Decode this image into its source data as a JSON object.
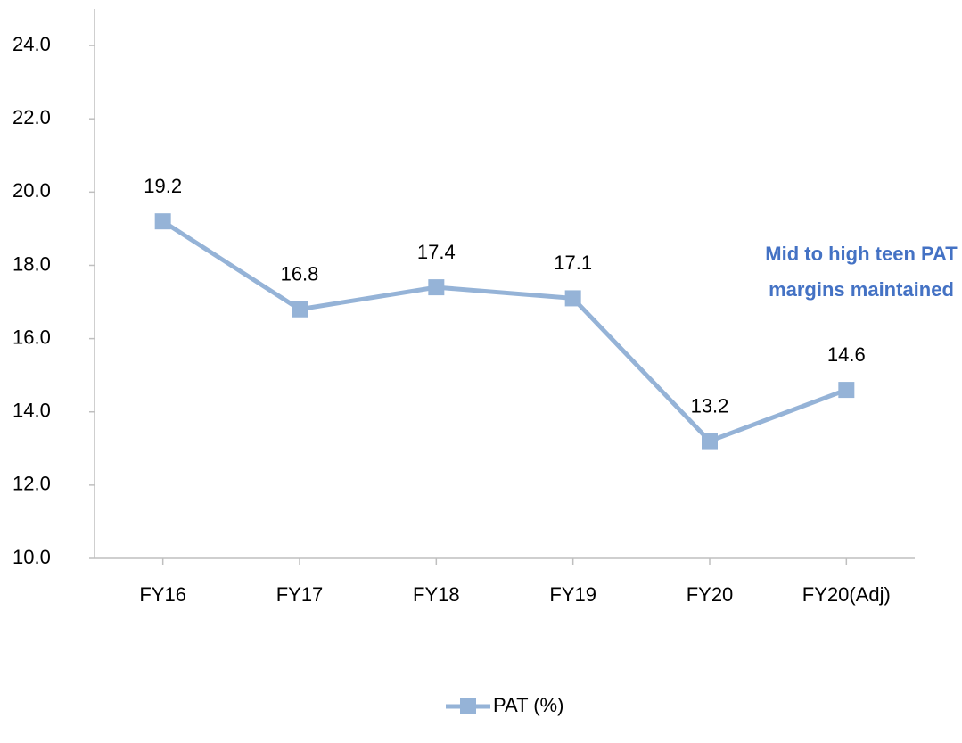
{
  "chart_data": {
    "type": "line",
    "categories": [
      "FY16",
      "FY17",
      "FY18",
      "FY19",
      "FY20",
      "FY20(Adj)"
    ],
    "series": [
      {
        "name": "PAT (%)",
        "color": "#95b3d7",
        "values": [
          19.2,
          16.8,
          17.4,
          17.1,
          13.2,
          14.6
        ]
      }
    ],
    "ylim": [
      10,
      25
    ],
    "yticks": [
      {
        "value": 10,
        "label": "10.0"
      },
      {
        "value": 12,
        "label": "12.0"
      },
      {
        "value": 14,
        "label": "14.0"
      },
      {
        "value": 16,
        "label": "16.0"
      },
      {
        "value": 18,
        "label": "18.0"
      },
      {
        "value": 20,
        "label": "20.0"
      },
      {
        "value": 22,
        "label": "22.0"
      },
      {
        "value": 24,
        "label": "24.0"
      }
    ],
    "annotation": [
      "Mid to high teen PAT",
      "margins maintained"
    ],
    "grid": false,
    "legend": "bottom"
  }
}
